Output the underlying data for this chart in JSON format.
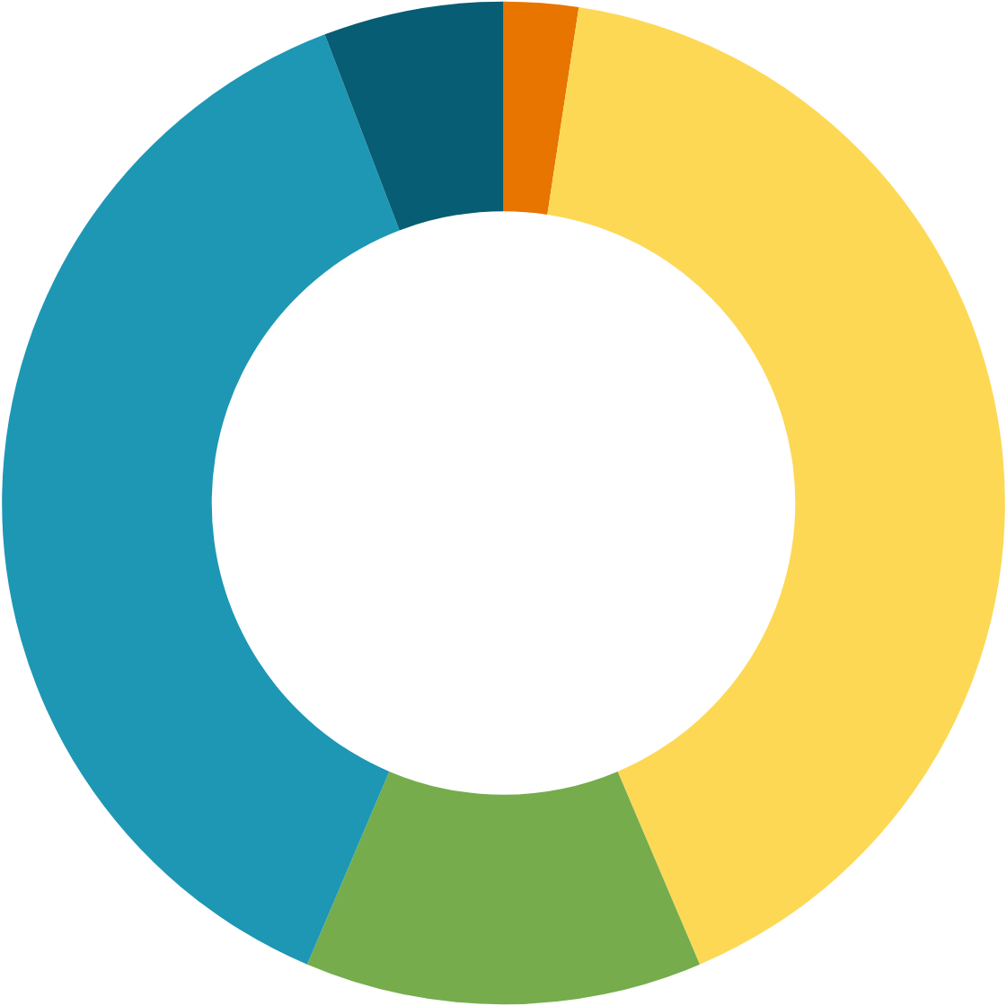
{
  "chart_data": {
    "type": "donut",
    "categories": [
      null,
      null,
      null,
      null,
      null
    ],
    "values": [
      2.4,
      41.2,
      12.8,
      37.8,
      5.8
    ],
    "colors": [
      "#e87500",
      "#fdd855",
      "#76ac4c",
      "#1d97b4",
      "#075d73"
    ]
  }
}
